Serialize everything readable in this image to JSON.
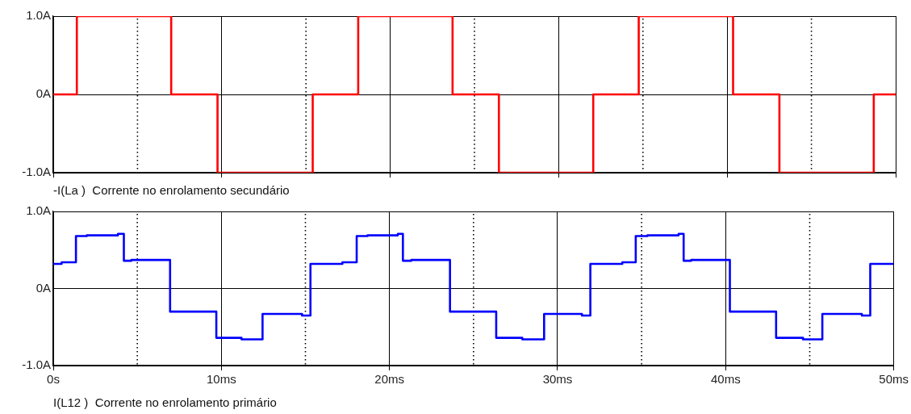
{
  "chart_data": [
    {
      "type": "step",
      "xlabel": "-I(La )  Corrente no enrolamento secundário",
      "xlim": [
        0,
        50
      ],
      "ylim": [
        -1,
        1
      ],
      "xticks": [
        {
          "value": 0,
          "label": null
        },
        {
          "value": 10,
          "label": null
        },
        {
          "value": 20,
          "label": null
        },
        {
          "value": 30,
          "label": null
        },
        {
          "value": 40,
          "label": null
        },
        {
          "value": 50,
          "label": null
        }
      ],
      "yticks": [
        {
          "value": -1,
          "label": "-1.0A"
        },
        {
          "value": 0,
          "label": "0A"
        },
        {
          "value": 1,
          "label": "1.0A"
        }
      ],
      "tick_labels": "y",
      "grid": true,
      "marker": "none",
      "line_style": "solid",
      "ref_lines": [
        {
          "axis": "x",
          "value": 5,
          "color": "#000000",
          "line_style": "dotted"
        },
        {
          "axis": "x",
          "value": 15,
          "color": "#000000",
          "line_style": "dotted"
        },
        {
          "axis": "x",
          "value": 25,
          "color": "#000000",
          "line_style": "dotted"
        },
        {
          "axis": "x",
          "value": 35,
          "color": "#000000",
          "line_style": "dotted"
        },
        {
          "axis": "x",
          "value": 45,
          "color": "#000000",
          "line_style": "dotted"
        }
      ],
      "series": [
        {
          "color": "#ff0000",
          "x": [
            0,
            1.4,
            7.0,
            9.75,
            15.4,
            18.1,
            23.7,
            26.45,
            32.05,
            34.75,
            40.35,
            43.1,
            48.7,
            50
          ],
          "values": [
            0,
            1,
            0,
            -1,
            0,
            1,
            0,
            -1,
            0,
            1,
            0,
            -1,
            0,
            0
          ]
        }
      ]
    },
    {
      "type": "step",
      "xlabel": "I(L12 )  Corrente no enrolamento primário",
      "xlim": [
        0,
        50
      ],
      "ylim": [
        -1,
        1
      ],
      "xticks": [
        {
          "value": 0,
          "label": "0s"
        },
        {
          "value": 10,
          "label": "10ms"
        },
        {
          "value": 20,
          "label": "20ms"
        },
        {
          "value": 30,
          "label": "30ms"
        },
        {
          "value": 40,
          "label": "40ms"
        },
        {
          "value": 50,
          "label": "50ms"
        }
      ],
      "yticks": [
        {
          "value": -1,
          "label": "-1.0A"
        },
        {
          "value": 0,
          "label": "0A"
        },
        {
          "value": 1,
          "label": "1.0A"
        }
      ],
      "grid": true,
      "marker": "none",
      "line_style": "solid",
      "ref_lines": [
        {
          "axis": "x",
          "value": 5,
          "color": "#000000",
          "line_style": "dotted"
        },
        {
          "axis": "x",
          "value": 15,
          "color": "#000000",
          "line_style": "dotted"
        },
        {
          "axis": "x",
          "value": 25,
          "color": "#000000",
          "line_style": "dotted"
        },
        {
          "axis": "x",
          "value": 35,
          "color": "#000000",
          "line_style": "dotted"
        },
        {
          "axis": "x",
          "value": 45,
          "color": "#000000",
          "line_style": "dotted"
        }
      ],
      "series": [
        {
          "color": "#0000ff",
          "x": [
            0,
            0.5,
            1.35,
            2.0,
            3.85,
            4.2,
            4.65,
            6.95,
            9.7,
            11.2,
            12.45,
            14.8,
            15.3,
            17.2,
            18.05,
            18.7,
            20.5,
            20.8,
            21.3,
            23.6,
            26.35,
            27.9,
            29.2,
            31.45,
            31.95,
            33.85,
            34.65,
            35.35,
            37.2,
            37.5,
            37.95,
            40.25,
            43.0,
            44.6,
            45.75,
            48.1,
            48.6,
            50
          ],
          "values": [
            0.32,
            0.34,
            0.68,
            0.69,
            0.71,
            0.36,
            0.37,
            -0.3,
            -0.64,
            -0.66,
            -0.33,
            -0.35,
            0.32,
            0.34,
            0.68,
            0.69,
            0.71,
            0.36,
            0.37,
            -0.3,
            -0.64,
            -0.66,
            -0.33,
            -0.35,
            0.32,
            0.34,
            0.68,
            0.69,
            0.71,
            0.36,
            0.37,
            -0.3,
            -0.64,
            -0.66,
            -0.33,
            -0.35,
            0.32,
            0.32
          ]
        }
      ]
    }
  ]
}
